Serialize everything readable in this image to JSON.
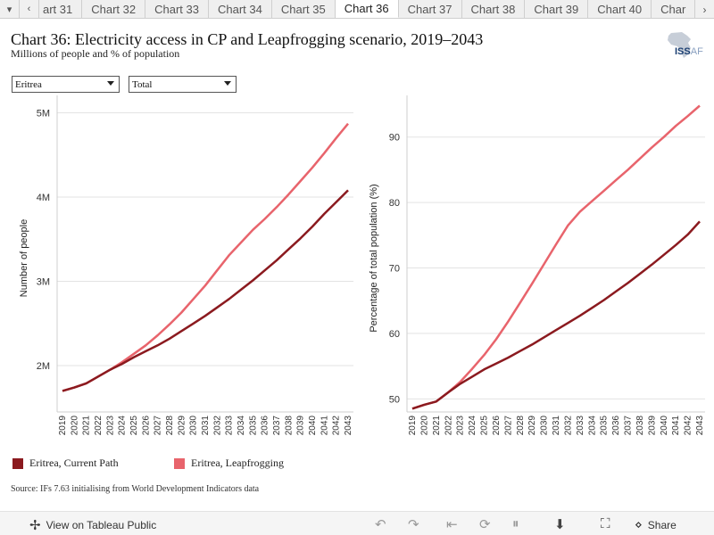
{
  "tabs": {
    "prev_icon": "chevron-down-icon",
    "items": [
      "art 31",
      "Chart 32",
      "Chart 33",
      "Chart 34",
      "Chart 35",
      "Chart 36",
      "Chart 37",
      "Chart 38",
      "Chart 39",
      "Chart 40",
      "Char"
    ],
    "active_index": 5
  },
  "header": {
    "title": "Chart 36: Electricity access in CP and Leapfrogging scenario, 2019–2043",
    "subtitle": "Millions of people and % of population",
    "logo_text": "ISS",
    "logo_text_suffix": "AF"
  },
  "filters": {
    "country": "Eritrea",
    "measure": "Total"
  },
  "legend": {
    "items": [
      {
        "label": "Eritrea, Current Path",
        "color": "#8b1a1f"
      },
      {
        "label": "Eritrea, Leapfrogging",
        "color": "#e8646c"
      }
    ]
  },
  "source": "Source: IFs 7.63 initialising from World Development Indicators data",
  "toolbar": {
    "view_label": "View on Tableau Public",
    "share_label": "Share"
  },
  "chart_data": [
    {
      "type": "line",
      "title": "",
      "xlabel": "",
      "ylabel": "Number of people",
      "ylim": [
        1.45,
        5.1
      ],
      "yticks": [
        2,
        3,
        4,
        5
      ],
      "ytick_labels": [
        "2M",
        "3M",
        "4M",
        "5M"
      ],
      "grid": true,
      "x": [
        "2019",
        "2020",
        "2021",
        "2022",
        "2023",
        "2024",
        "2025",
        "2026",
        "2027",
        "2028",
        "2029",
        "2030",
        "2031",
        "2032",
        "2033",
        "2034",
        "2035",
        "2036",
        "2037",
        "2038",
        "2039",
        "2040",
        "2041",
        "2042",
        "2043"
      ],
      "series": [
        {
          "name": "Eritrea, Current Path",
          "color": "#8b1a1f",
          "values": [
            1.7,
            1.74,
            1.79,
            1.87,
            1.95,
            2.02,
            2.1,
            2.17,
            2.24,
            2.32,
            2.41,
            2.5,
            2.59,
            2.69,
            2.79,
            2.9,
            3.01,
            3.13,
            3.25,
            3.38,
            3.51,
            3.65,
            3.8,
            3.94,
            4.08
          ]
        },
        {
          "name": "Eritrea, Leapfrogging",
          "color": "#e8646c",
          "values": [
            1.7,
            1.74,
            1.79,
            1.87,
            1.95,
            2.04,
            2.14,
            2.24,
            2.36,
            2.49,
            2.63,
            2.79,
            2.95,
            3.13,
            3.31,
            3.46,
            3.61,
            3.74,
            3.88,
            4.03,
            4.19,
            4.35,
            4.52,
            4.7,
            4.87
          ]
        }
      ]
    },
    {
      "type": "line",
      "title": "",
      "xlabel": "",
      "ylabel": "Percentage of total population (%)",
      "ylim": [
        48,
        95
      ],
      "yticks": [
        50,
        60,
        70,
        80,
        90
      ],
      "ytick_labels": [
        "50",
        "60",
        "70",
        "80",
        "90"
      ],
      "grid": true,
      "x": [
        "2019",
        "2020",
        "2021",
        "2022",
        "2023",
        "2024",
        "2025",
        "2026",
        "2027",
        "2028",
        "2029",
        "2030",
        "2031",
        "2032",
        "2033",
        "2034",
        "2035",
        "2036",
        "2037",
        "2038",
        "2039",
        "2040",
        "2041",
        "2042",
        "2043"
      ],
      "series": [
        {
          "name": "Eritrea, Current Path",
          "color": "#8b1a1f",
          "values": [
            48.5,
            49.1,
            49.6,
            51.0,
            52.3,
            53.4,
            54.5,
            55.4,
            56.3,
            57.3,
            58.3,
            59.4,
            60.5,
            61.6,
            62.7,
            63.9,
            65.1,
            66.4,
            67.7,
            69.1,
            70.5,
            72.0,
            73.5,
            75.1,
            77.1
          ]
        },
        {
          "name": "Eritrea, Leapfrogging",
          "color": "#e8646c",
          "values": [
            48.5,
            49.1,
            49.6,
            51.0,
            52.6,
            54.6,
            56.7,
            59.1,
            61.8,
            64.7,
            67.6,
            70.6,
            73.6,
            76.5,
            78.6,
            80.2,
            81.8,
            83.4,
            85.0,
            86.7,
            88.4,
            90.0,
            91.7,
            93.2,
            94.8
          ]
        }
      ]
    }
  ]
}
